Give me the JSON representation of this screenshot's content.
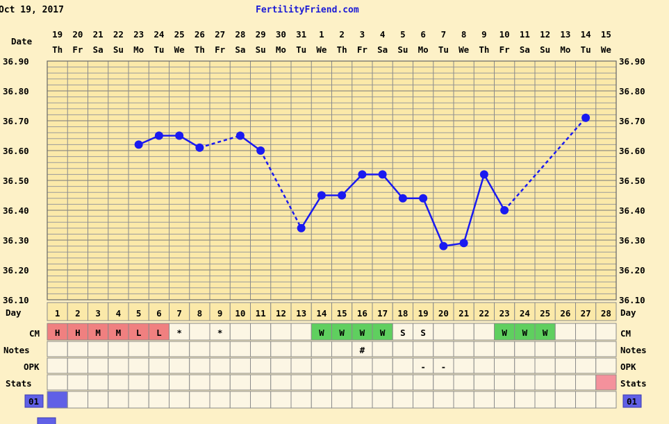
{
  "header": {
    "date": "Oct 19, 2017",
    "site": "FertilityFriend.com"
  },
  "labels": {
    "date": "Date",
    "day": "Day",
    "cm": "CM",
    "notes": "Notes",
    "opk": "OPK",
    "stats": "Stats",
    "cycle": "01"
  },
  "colors": {
    "background": "#fdf1c7",
    "plot_bg": "#fbe9a9",
    "line": "#1a1af0",
    "cm_menstrual": "#f08080",
    "cm_wet": "#5fcf5f",
    "stats_pink": "#f4919c",
    "cycle_blue": "#6060e6"
  },
  "chart_data": {
    "type": "line",
    "y_unit": "°C",
    "ylim": [
      36.1,
      36.9
    ],
    "yticks": [
      "36.10",
      "36.20",
      "36.30",
      "36.40",
      "36.50",
      "36.60",
      "36.70",
      "36.80",
      "36.90"
    ],
    "dates": [
      "19",
      "20",
      "21",
      "22",
      "23",
      "24",
      "25",
      "26",
      "27",
      "28",
      "29",
      "30",
      "31",
      "1",
      "2",
      "3",
      "4",
      "5",
      "6",
      "7",
      "8",
      "9",
      "10",
      "11",
      "12",
      "13",
      "14",
      "15"
    ],
    "weekdays": [
      "Th",
      "Fr",
      "Sa",
      "Su",
      "Mo",
      "Tu",
      "We",
      "Th",
      "Fr",
      "Sa",
      "Su",
      "Mo",
      "Tu",
      "We",
      "Th",
      "Fr",
      "Sa",
      "Su",
      "Mo",
      "Tu",
      "We",
      "Th",
      "Fr",
      "Sa",
      "Su",
      "Mo",
      "Tu",
      "We"
    ],
    "days": [
      "1",
      "2",
      "3",
      "4",
      "5",
      "6",
      "7",
      "8",
      "9",
      "10",
      "11",
      "12",
      "13",
      "14",
      "15",
      "16",
      "17",
      "18",
      "19",
      "20",
      "21",
      "22",
      "23",
      "24",
      "25",
      "26",
      "27",
      "28"
    ],
    "temperatures": [
      null,
      null,
      null,
      null,
      36.62,
      36.65,
      36.65,
      36.61,
      null,
      36.65,
      36.6,
      null,
      36.34,
      36.45,
      36.45,
      36.52,
      36.52,
      36.44,
      36.44,
      36.28,
      36.29,
      36.52,
      36.4,
      null,
      null,
      null,
      36.71,
      null
    ],
    "cm": [
      "H",
      "H",
      "M",
      "M",
      "L",
      "L",
      "*",
      "",
      "*",
      "",
      "",
      "",
      "",
      "W",
      "W",
      "W",
      "W",
      "S",
      "S",
      "",
      "",
      "",
      "W",
      "W",
      "W",
      "",
      "",
      ""
    ],
    "cm_types": [
      "menstrual",
      "menstrual",
      "menstrual",
      "menstrual",
      "menstrual",
      "menstrual",
      "plain",
      "plain",
      "plain",
      "plain",
      "plain",
      "plain",
      "plain",
      "wet",
      "wet",
      "wet",
      "wet",
      "plain",
      "plain",
      "plain",
      "plain",
      "plain",
      "wet",
      "wet",
      "wet",
      "plain",
      "plain",
      "plain"
    ],
    "notes": [
      "",
      "",
      "",
      "",
      "",
      "",
      "",
      "",
      "",
      "",
      "",
      "",
      "",
      "",
      "",
      "#",
      "",
      "",
      "",
      "",
      "",
      "",
      "",
      "",
      "",
      "",
      "",
      ""
    ],
    "opk": [
      "",
      "",
      "",
      "",
      "",
      "",
      "",
      "",
      "",
      "",
      "",
      "",
      "",
      "",
      "",
      "",
      "",
      "",
      "-",
      "-",
      "",
      "",
      "",
      "",
      "",
      "",
      "",
      ""
    ],
    "stats_pink_index": 27,
    "cycle_blue_index": 0,
    "grid": true
  }
}
